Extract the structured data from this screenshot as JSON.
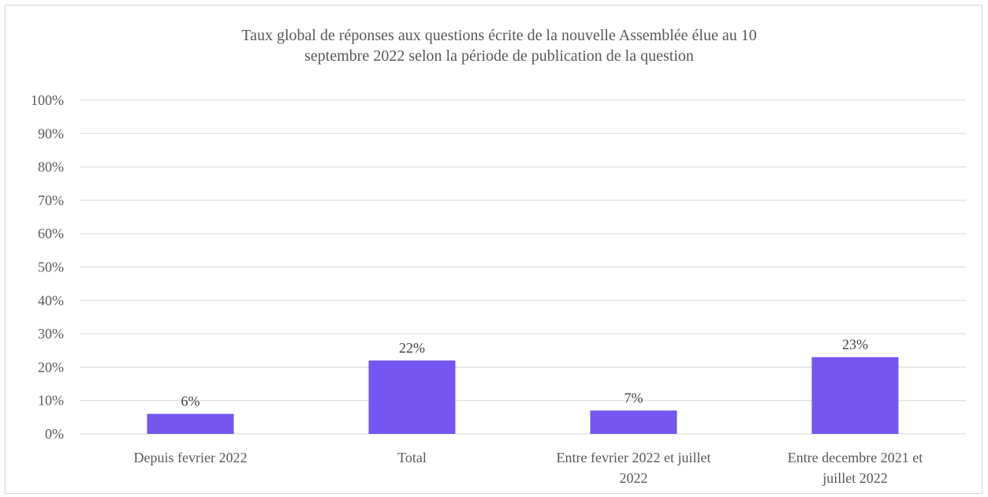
{
  "chart_data": {
    "type": "bar",
    "title_lines": [
      "Taux global de réponses aux questions écrite de la nouvelle Assemblée élue au 10",
      "septembre 2022 selon la période de publication de la question"
    ],
    "categories": [
      [
        "Depuis fevrier 2022"
      ],
      [
        "Total"
      ],
      [
        "Entre fevrier 2022 et juillet",
        "2022"
      ],
      [
        "Entre decembre 2021 et",
        "juillet 2022"
      ]
    ],
    "values": [
      0.06,
      0.22,
      0.07,
      0.23
    ],
    "data_labels": [
      "6%",
      "22%",
      "7%",
      "23%"
    ],
    "ylim": [
      0,
      1
    ],
    "yticks": [
      "0%",
      "10%",
      "20%",
      "30%",
      "40%",
      "50%",
      "60%",
      "70%",
      "80%",
      "90%",
      "100%"
    ],
    "grid": true,
    "legend": "none",
    "colors": {
      "bar": "#7556f0",
      "grid": "#d9d9d9",
      "text": "#595959",
      "label": "#404040"
    }
  }
}
